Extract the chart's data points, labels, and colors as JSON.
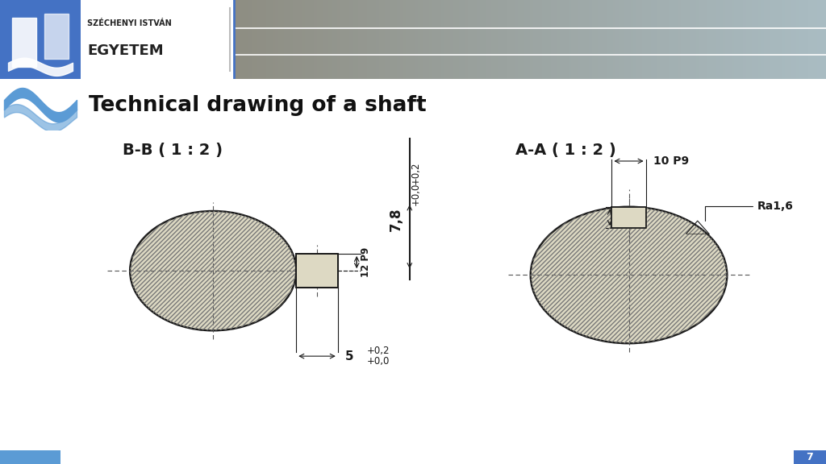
{
  "bg_color": "#ffffff",
  "header_bar_color": "#5b9bd5",
  "slide_title": "Technical drawing of a shaft",
  "footer_number": "7",
  "drawing_bg": "#ddd9c3",
  "line_color": "#1a1a1a",
  "centerline_color": "#555555",
  "hatch_color": "#777777",
  "title_BB": "B-B ( 1 : 2 )",
  "title_AA": "A-A ( 1 : 2 )",
  "dim_BB_vertical": "12 P9",
  "dim_AA_horizontal": "10 P9",
  "ra_label": "Ra1,6",
  "blue_color": "#4472c4",
  "blue_light": "#5b9bd5",
  "page_num": "7"
}
